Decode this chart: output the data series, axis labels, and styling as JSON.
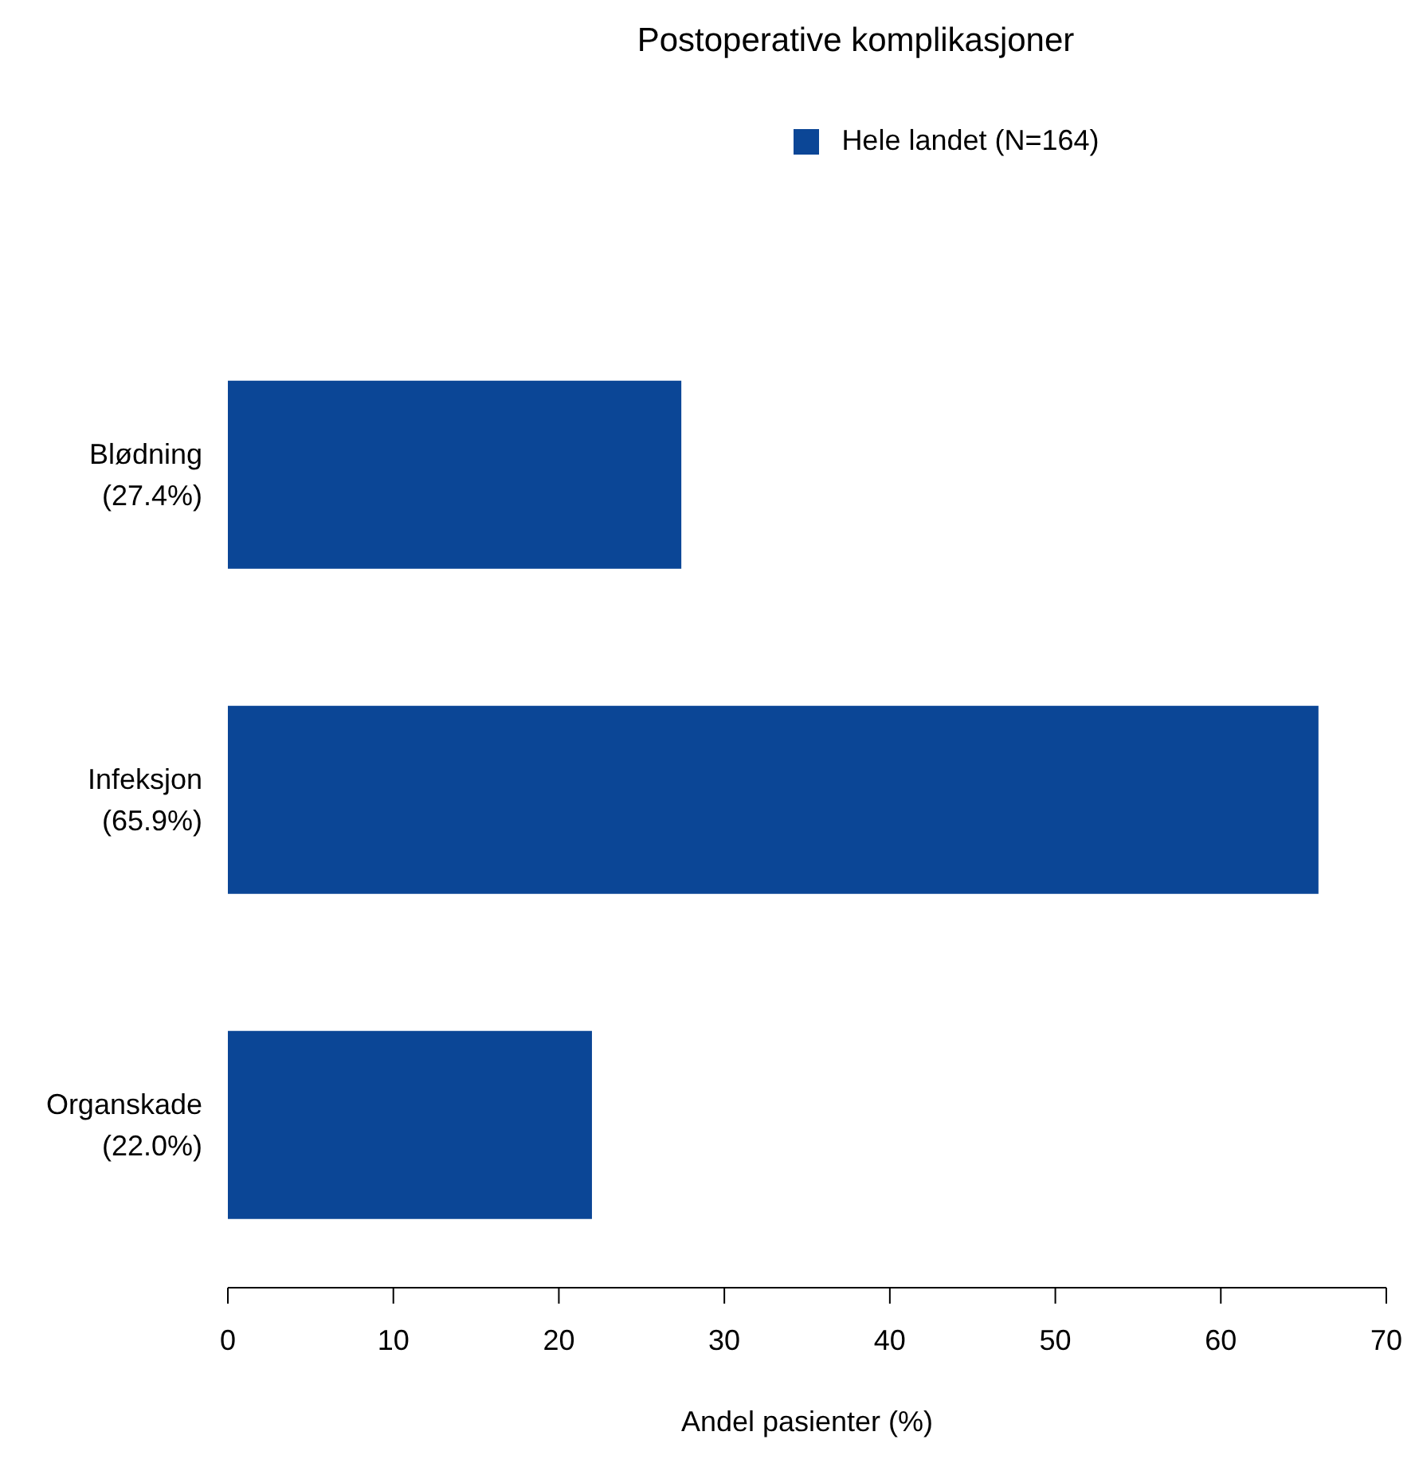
{
  "chart_data": {
    "type": "bar",
    "orientation": "horizontal",
    "title": "Postoperative komplikasjoner",
    "xlabel": "Andel pasienter (%)",
    "categories": [
      "Blødning\n(27.4%)",
      "Infeksjon\n(65.9%)",
      "Organskade\n(22.0%)"
    ],
    "series": [
      {
        "name": "Hele landet (N=164)",
        "color": "#0b4696",
        "values": [
          27.4,
          65.9,
          22.0
        ]
      }
    ],
    "xlim": [
      0,
      70
    ],
    "xticks": [
      0,
      10,
      20,
      30,
      40,
      50,
      60,
      70
    ],
    "grid": false,
    "legend": "top"
  }
}
